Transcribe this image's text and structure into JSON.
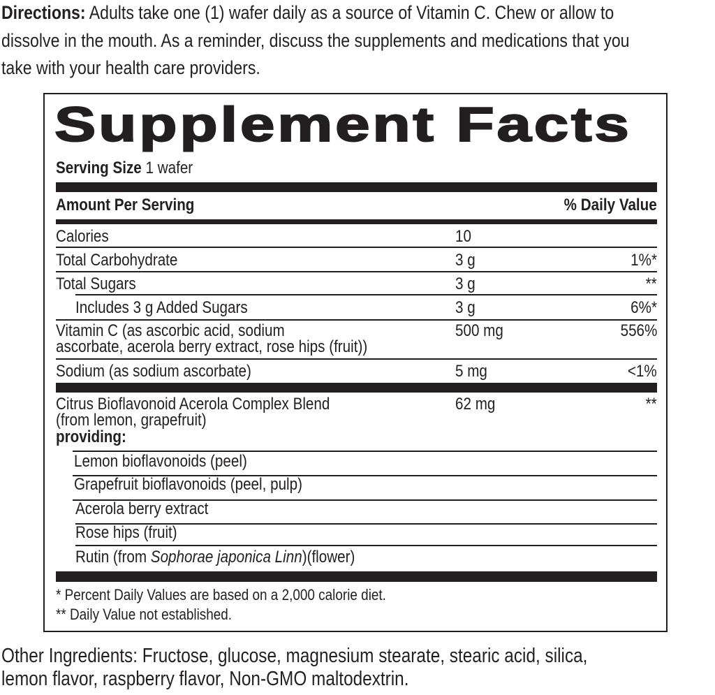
{
  "directions": {
    "label": "Directions:",
    "lines": [
      " Adults take one (1) wafer daily as a source of Vitamin C. Chew or allow to",
      "dissolve in the mouth. As a reminder, discuss the supplements and medications that you",
      "take with your health care providers."
    ]
  },
  "facts": {
    "title": "Supplement Facts",
    "serving_size_label": "Serving Size",
    "serving_size_value": " 1 wafer",
    "header_amount": "Amount Per Serving",
    "header_dv": "% Daily Value",
    "rows": [
      {
        "name": "Calories",
        "amount": "10",
        "dv": ""
      },
      {
        "name": "Total Carbohydrate",
        "amount": "3 g",
        "dv": "1%*"
      },
      {
        "name": "Total Sugars",
        "amount": "3 g",
        "dv": "**"
      },
      {
        "name": "Includes 3 g Added Sugars",
        "amount": "3 g",
        "dv": "6%*"
      },
      {
        "name_lines": [
          "Vitamin C (as ascorbic acid, sodium",
          "ascorbate, acerola berry extract, rose hips (fruit))"
        ],
        "amount": "500 mg",
        "dv": "556%"
      },
      {
        "name": "Sodium (as sodium ascorbate)",
        "amount": "5 mg",
        "dv": "<1%"
      }
    ],
    "blend": {
      "name_lines": [
        "Citrus Bioflavonoid Acerola Complex Blend",
        "(from lemon, grapefruit)"
      ],
      "amount": "62 mg",
      "dv": "**",
      "providing_label": "providing:",
      "items": [
        "Lemon bioflavonoids (peel)",
        "Grapefruit bioflavonoids (peel, pulp)",
        "Acerola berry extract",
        "Rose hips (fruit)"
      ],
      "rutin": {
        "prefix": "Rutin (from ",
        "italic": "Sophorae japonica Linn",
        "suffix": ")(flower)"
      }
    },
    "footnotes": [
      "* Percent Daily Values are based on a 2,000 calorie diet.",
      "** Daily Value not established."
    ]
  },
  "other_ingredients": {
    "lines": [
      "Other Ingredients: Fructose, glucose, magnesium stearate, stearic acid, silica,",
      "lemon flavor, raspberry flavor, Non-GMO maltodextrin."
    ]
  }
}
